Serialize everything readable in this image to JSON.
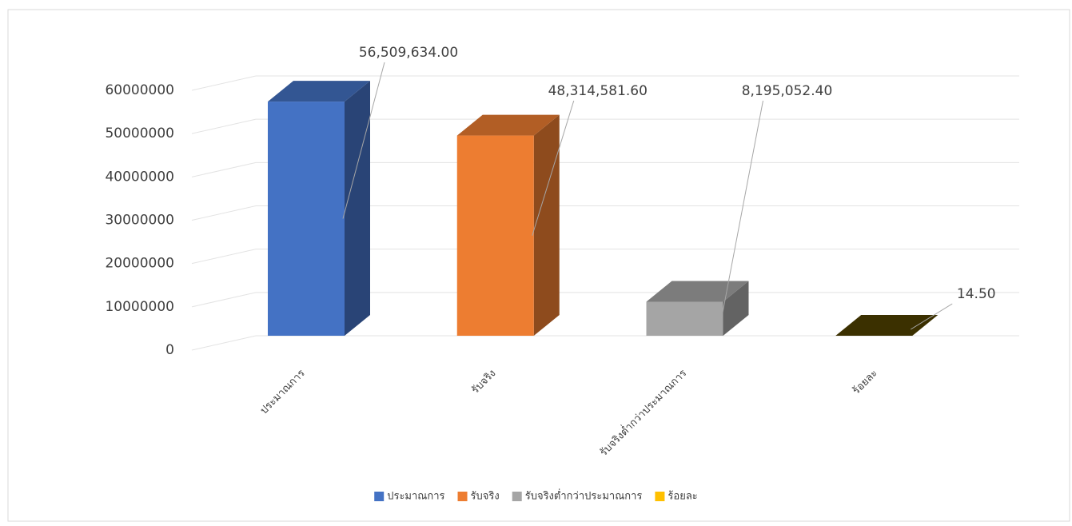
{
  "chart_data": {
    "type": "bar3d",
    "categories": [
      "ประมาณการ",
      "รับจริง",
      "รับจริงต่ำกว่าประมาณการ",
      "ร้อยละ"
    ],
    "series": [
      {
        "name": "ประมาณการ",
        "color": "#4472c4",
        "values": [
          56509634,
          null,
          null,
          null
        ],
        "value_labels": [
          "56,509,634.00",
          null,
          null,
          null
        ]
      },
      {
        "name": "รับจริง",
        "color": "#ed7d31",
        "values": [
          null,
          48314581.6,
          null,
          null
        ],
        "value_labels": [
          null,
          "48,314,581.60",
          null,
          null
        ]
      },
      {
        "name": "รับจริงต่ำกว่าประมาณการ",
        "color": "#a5a5a5",
        "values": [
          null,
          null,
          8195052.4,
          null
        ],
        "value_labels": [
          null,
          null,
          "8,195,052.40",
          null
        ]
      },
      {
        "name": "ร้อยละ",
        "color": "#ffc000",
        "values": [
          null,
          null,
          null,
          14.5
        ],
        "value_labels": [
          null,
          null,
          null,
          "14.50"
        ]
      }
    ],
    "ylim": [
      0,
      60000000
    ],
    "yticks": [
      0,
      10000000,
      20000000,
      30000000,
      40000000,
      50000000,
      60000000
    ],
    "grid": true,
    "legend": "bottom"
  }
}
